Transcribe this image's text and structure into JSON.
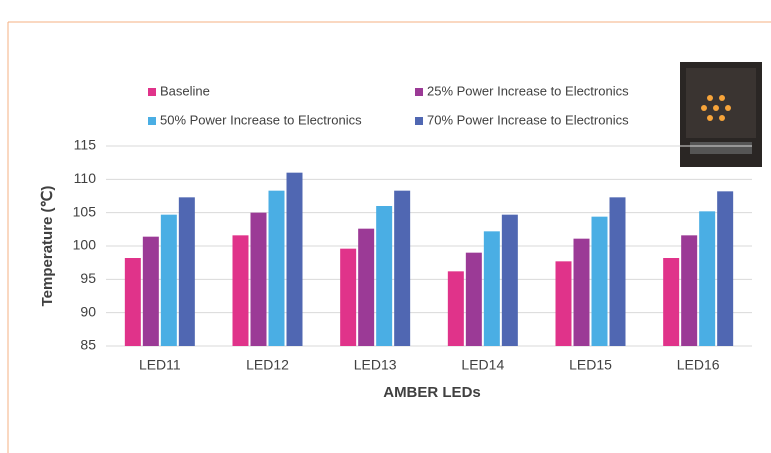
{
  "chart_data": {
    "type": "bar",
    "x_label": "AMBER LEDs",
    "y_label": "Temperature (℃)",
    "categories": [
      "LED11",
      "LED12",
      "LED13",
      "LED14",
      "LED15",
      "LED16"
    ],
    "series": [
      {
        "name": "Baseline",
        "color": "#e0338a",
        "values": [
          98.2,
          101.6,
          99.6,
          96.2,
          97.7,
          98.2
        ]
      },
      {
        "name": "25% Power Increase to Electronics",
        "color": "#9b3a96",
        "values": [
          101.4,
          105.0,
          102.6,
          99.0,
          101.1,
          101.6
        ]
      },
      {
        "name": "50% Power Increase to Electronics",
        "color": "#4aaee4",
        "values": [
          104.7,
          108.3,
          106.0,
          102.2,
          104.4,
          105.2
        ]
      },
      {
        "name": "70% Power Increase to Electronics",
        "color": "#5067b2",
        "values": [
          107.3,
          111.0,
          108.3,
          104.7,
          107.3,
          108.2
        ]
      }
    ],
    "ylim": [
      85,
      115
    ],
    "yticks": [
      85,
      90,
      95,
      100,
      105,
      110,
      115
    ],
    "grid": true
  }
}
